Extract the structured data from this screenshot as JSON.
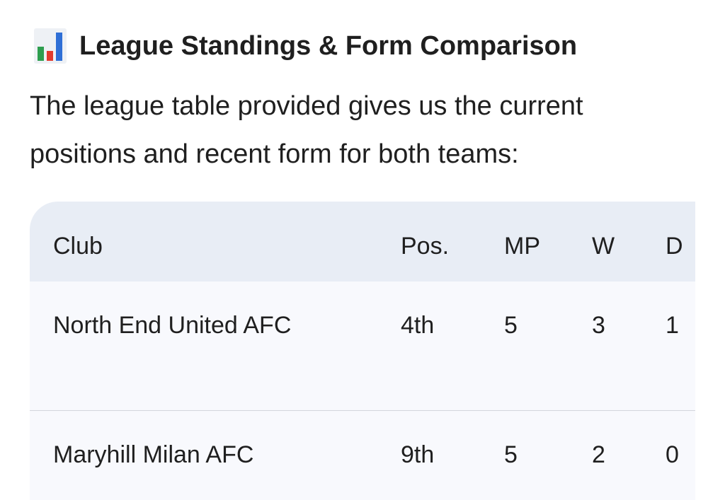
{
  "header": {
    "title": "League Standings & Form Comparison"
  },
  "paragraph": "The league table provided gives us the current positions and recent form for both teams:",
  "table": {
    "columns": [
      "Club",
      "Pos.",
      "MP",
      "W",
      "D"
    ],
    "rows": [
      [
        "North End United AFC",
        "4th",
        5,
        3,
        1
      ],
      [
        "Maryhill Milan AFC",
        "9th",
        5,
        2,
        0
      ]
    ]
  }
}
